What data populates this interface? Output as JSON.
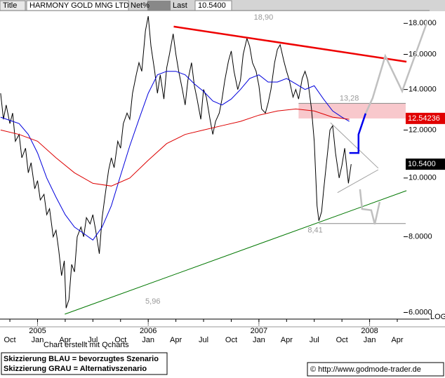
{
  "chart_data": {
    "type": "line",
    "header": [
      "Title",
      "HARMONY GOLD MNG LTD",
      "Net%",
      "Last",
      "10.5400"
    ],
    "log": true,
    "log_label": "LOG",
    "ylim": [
      5.85,
      18.9
    ],
    "xlim": [
      -1.07,
      45.5
    ],
    "yticks": [
      {
        "value": 6,
        "label": "6.0000"
      },
      {
        "value": 8,
        "label": "8.0000"
      },
      {
        "value": 10,
        "label": "10.0000"
      },
      {
        "value": 12,
        "label": "12.0000"
      },
      {
        "value": 14,
        "label": "14.0000"
      },
      {
        "value": 16,
        "label": "16.0000"
      },
      {
        "value": 18,
        "label": "18.0000"
      }
    ],
    "xticks": [
      {
        "value": 0,
        "label": "Oct"
      },
      {
        "value": 3,
        "label": "Jan"
      },
      {
        "value": 6,
        "label": "Apr"
      },
      {
        "value": 9,
        "label": "Jul"
      },
      {
        "value": 12,
        "label": "Oct"
      },
      {
        "value": 15,
        "label": "Jan"
      },
      {
        "value": 18,
        "label": "Apr"
      },
      {
        "value": 21,
        "label": "Jul"
      },
      {
        "value": 24,
        "label": "Oct"
      },
      {
        "value": 27,
        "label": "Jan"
      },
      {
        "value": 30,
        "label": "Apr"
      },
      {
        "value": 33,
        "label": "Jul"
      },
      {
        "value": 36,
        "label": "Oct"
      },
      {
        "value": 39,
        "label": "Jan"
      },
      {
        "value": 42,
        "label": "Apr"
      }
    ],
    "year_ticks": [
      {
        "value": 3,
        "label": "2005"
      },
      {
        "value": 15,
        "label": "2006"
      },
      {
        "value": 27,
        "label": "2007"
      },
      {
        "value": 39,
        "label": "2008"
      }
    ],
    "zone": {
      "from": 12.54,
      "to": 13.28,
      "x0": 31.3,
      "color": "#f8c8cc"
    },
    "levels": [
      {
        "value": 18.9,
        "label": "18,90",
        "x": 27.5,
        "line_from": -1.07,
        "label_pos": "below"
      },
      {
        "value": 13.28,
        "label": "13,28",
        "x": 36.8,
        "line_from": 31.3,
        "label_pos": "above"
      },
      {
        "value": 8.41,
        "label": "8,41",
        "x": 33.1,
        "line_from": 33.5,
        "label_pos": "below"
      },
      {
        "value": 5.96,
        "label": "5,96",
        "x": 15.5,
        "label_pos": "above"
      }
    ],
    "price_tags": [
      {
        "value": 12.54236,
        "label": "12.54236",
        "color": "#e00000"
      },
      {
        "value": 10.54,
        "label": "10.5400",
        "color": "#000000"
      }
    ],
    "series": [
      {
        "color": "#000000",
        "width": 1,
        "x": [
          -1.0,
          -0.7,
          -0.4,
          0,
          0.3,
          0.6,
          1,
          1.3,
          1.7,
          2,
          2.3,
          2.7,
          3,
          3.3,
          3.7,
          4,
          4.3,
          4.7,
          5,
          5.3,
          5.6,
          5.9,
          6.1,
          6.4,
          6.7,
          7,
          7.3,
          7.7,
          8,
          8.3,
          8.7,
          9,
          9.3,
          9.7,
          10,
          10.3,
          10.7,
          11,
          11.3,
          11.7,
          12,
          12.3,
          12.7,
          13,
          13.3,
          13.7,
          14,
          14.3,
          14.7,
          15,
          15.3,
          15.7,
          16,
          16.3,
          16.7,
          17,
          17.3,
          17.7,
          18,
          18.3,
          18.7,
          19,
          19.3,
          19.7,
          20,
          20.3,
          20.7,
          21,
          21.3,
          21.7,
          22,
          22.3,
          22.7,
          23,
          23.3,
          23.7,
          24,
          24.3,
          24.7,
          25,
          25.3,
          25.7,
          26,
          26.3,
          26.7,
          27,
          27.3,
          27.7,
          28,
          28.3,
          28.7,
          29,
          29.3,
          29.7,
          30,
          30.3,
          30.7,
          31,
          31.3,
          31.7,
          32,
          32.3,
          32.7,
          33,
          33.3,
          33.5,
          33.8,
          34,
          34.3,
          34.7,
          35,
          35.3,
          35.7,
          36,
          36.3,
          36.7,
          37
        ],
        "values": [
          13.8,
          12.5,
          13.2,
          12.3,
          12.8,
          11.5,
          11.8,
          10.8,
          11.2,
          10.2,
          10.6,
          9.6,
          9.9,
          9.2,
          9.4,
          8.7,
          8.9,
          8.0,
          8.2,
          7.6,
          6.9,
          7.3,
          6.1,
          6.3,
          7.2,
          7.0,
          8.0,
          8.3,
          8.0,
          8.6,
          8.4,
          8.7,
          8.2,
          7.5,
          8.6,
          9.3,
          10.3,
          10.8,
          10.4,
          11.5,
          11.2,
          12.3,
          12.8,
          12.5,
          13.8,
          14.8,
          15.5,
          15.0,
          17.5,
          18.5,
          16.5,
          15.0,
          13.8,
          14.8,
          13.5,
          15.2,
          16.0,
          17.3,
          16.0,
          15.0,
          14.0,
          13.2,
          14.5,
          15.5,
          14.2,
          13.5,
          12.5,
          14.0,
          13.6,
          12.5,
          11.8,
          12.4,
          12.8,
          13.5,
          14.5,
          15.6,
          16.2,
          15.0,
          14.0,
          14.5,
          16.0,
          17.0,
          16.5,
          15.5,
          15.0,
          14.2,
          13.0,
          12.8,
          13.3,
          14.0,
          15.5,
          16.3,
          16.6,
          15.6,
          15.0,
          14.5,
          13.6,
          14.0,
          13.5,
          14.6,
          15.0,
          14.5,
          13.0,
          11.5,
          9.0,
          8.5,
          8.8,
          9.5,
          10.5,
          12.0,
          12.2,
          11.0,
          10.0,
          10.5,
          11.2,
          9.8,
          10.54
        ]
      },
      {
        "color": "#0000dd",
        "width": 1,
        "x": [
          -1,
          1,
          2,
          3,
          4,
          5,
          6,
          7,
          8,
          9,
          10,
          11,
          12,
          13,
          14,
          15,
          16,
          17,
          18,
          19,
          20,
          21,
          22,
          23,
          24,
          25,
          26,
          27,
          28,
          29,
          30,
          31,
          32,
          33,
          34,
          35,
          36,
          36.8
        ],
        "values": [
          12.6,
          12.3,
          11.8,
          11.0,
          10.0,
          9.3,
          8.7,
          8.3,
          8.1,
          7.9,
          8.3,
          9.0,
          10.1,
          11.3,
          12.5,
          13.8,
          14.8,
          15.0,
          15.0,
          14.8,
          14.3,
          13.9,
          13.4,
          13.2,
          13.5,
          14.0,
          14.6,
          14.8,
          14.4,
          14.4,
          14.6,
          14.3,
          14.0,
          14.2,
          13.5,
          12.9,
          12.6,
          12.4
        ]
      },
      {
        "color": "#dd0000",
        "width": 1,
        "x": [
          -1,
          1,
          3,
          5,
          7,
          9,
          11,
          13,
          15,
          17,
          19,
          21,
          23,
          25,
          27,
          29,
          31,
          33,
          35,
          36.8
        ],
        "values": [
          12.0,
          11.8,
          11.5,
          10.8,
          10.2,
          9.8,
          9.7,
          10.0,
          10.7,
          11.4,
          11.8,
          12.0,
          12.2,
          12.4,
          12.7,
          12.9,
          13.0,
          12.9,
          12.6,
          12.5
        ]
      },
      {
        "color": "#ee0000",
        "width": 2.5,
        "x": [
          17.76,
          43
        ],
        "values": [
          17.78,
          15.56
        ]
      },
      {
        "color": "#007700",
        "width": 1,
        "x": [
          5.95,
          43
        ],
        "values": [
          5.96,
          9.53
        ]
      },
      {
        "color": "#a0a0a0",
        "width": 1,
        "x": [
          34.76,
          39.94
        ],
        "values": [
          12.34,
          10.38
        ]
      },
      {
        "color": "#a0a0a0",
        "width": 1,
        "x": [
          35.52,
          39.94
        ],
        "values": [
          9.46,
          10.32
        ]
      },
      {
        "color": "#c0c0c0",
        "width": 2.5,
        "x": [
          37.96,
          38.19,
          39.18,
          39.56,
          40.09
        ],
        "values": [
          9.58,
          8.89,
          8.85,
          8.39,
          9.13
        ]
      },
      {
        "color": "#c0c0c0",
        "width": 2.5,
        "x": [
          38.57,
          39.33,
          40.7,
          42.53,
          45.27
        ],
        "values": [
          12.78,
          13.55,
          15.9,
          13.91,
          18.16
        ]
      },
      {
        "color": "#0000ee",
        "width": 2.5,
        "x": [
          36.8,
          37.8,
          37.8,
          38.57
        ],
        "values": [
          11.0,
          11.0,
          11.8,
          12.78
        ]
      }
    ],
    "footer_note": "Chart erstellt mit Qcharts",
    "legend_lines": [
      "Skizzierung BLAU = bevorzugtes Szenario",
      "Skizzierung GRAU = Alternativszenario"
    ],
    "copyright": "© http://www.godmode-trader.de"
  }
}
